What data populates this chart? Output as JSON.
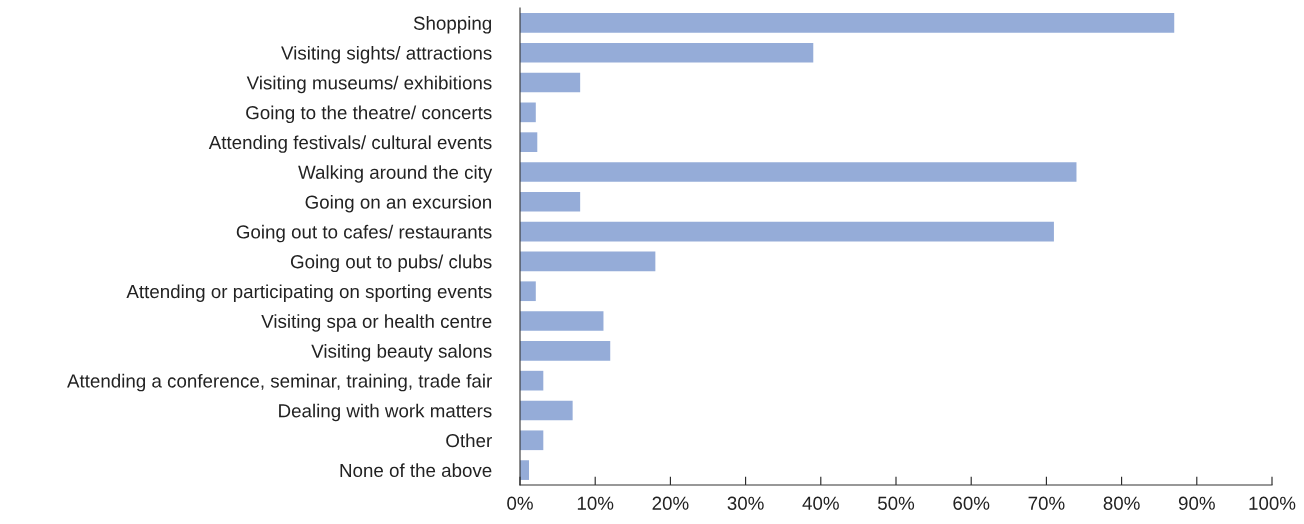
{
  "chart_data": {
    "type": "bar",
    "orientation": "horizontal",
    "categories": [
      "Shopping",
      "Visiting sights/ attractions",
      "Visiting museums/ exhibitions",
      "Going to the theatre/ concerts",
      "Attending festivals/ cultural events",
      "Walking around the city",
      "Going on an excursion",
      "Going out to cafes/ restaurants",
      "Going out to pubs/ clubs",
      "Attending or participating on sporting events",
      "Visiting spa or health centre",
      "Visiting beauty salons",
      "Attending a conference, seminar, training, trade fair",
      "Dealing with work matters",
      "Other",
      "None of the above"
    ],
    "values": [
      87,
      39,
      8,
      2.1,
      2.3,
      74,
      8,
      71,
      18,
      2.1,
      11.1,
      12,
      3.1,
      7,
      3.1,
      1.2
    ],
    "color": "#95acd8",
    "xlim": [
      0,
      100
    ],
    "xticks": [
      {
        "value": 0,
        "label": "0%"
      },
      {
        "value": 10,
        "label": "10%"
      },
      {
        "value": 20,
        "label": "20%"
      },
      {
        "value": 30,
        "label": "30%"
      },
      {
        "value": 40,
        "label": "40%"
      },
      {
        "value": 50,
        "label": "50%"
      },
      {
        "value": 60,
        "label": "60%"
      },
      {
        "value": 70,
        "label": "70%"
      },
      {
        "value": 80,
        "label": "80%"
      },
      {
        "value": 90,
        "label": "90%"
      },
      {
        "value": 100,
        "label": "100%"
      }
    ],
    "grid": false,
    "legend": false
  }
}
